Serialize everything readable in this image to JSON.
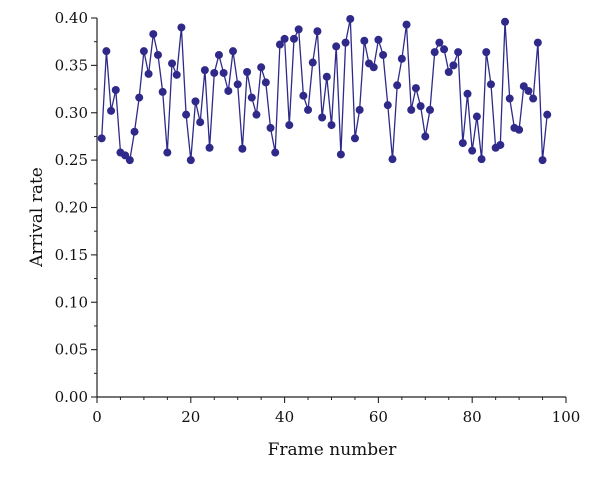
{
  "chart_data": {
    "type": "scatter",
    "title": "",
    "xlabel": "Frame number",
    "ylabel": "Arrival rate",
    "xlim": [
      0,
      100
    ],
    "ylim": [
      0.0,
      0.4
    ],
    "x_ticks": [
      "0",
      "20",
      "40",
      "60",
      "80",
      "100"
    ],
    "y_ticks": [
      "0.00",
      "0.05",
      "0.10",
      "0.15",
      "0.20",
      "0.25",
      "0.30",
      "0.35",
      "0.40"
    ],
    "grid": false,
    "legend": "none",
    "line_connected": true,
    "colors": {
      "series": "#2f2a8a",
      "axis": "#222222"
    },
    "series": [
      {
        "x": [
          1,
          2,
          3,
          4,
          5,
          6,
          7,
          8,
          9,
          10,
          11,
          12,
          13,
          14,
          15,
          16,
          17,
          18,
          19,
          20,
          21,
          22,
          23,
          24,
          25,
          26,
          27,
          28,
          29,
          30,
          31,
          32,
          33,
          34,
          35,
          36,
          37,
          38,
          39,
          40,
          41,
          42,
          43,
          44,
          45,
          46,
          47,
          48,
          49,
          50,
          51,
          52,
          53,
          54,
          55,
          56,
          57,
          58,
          59,
          60,
          61,
          62,
          63,
          64,
          65,
          66,
          67,
          68,
          69,
          70,
          71,
          72,
          73,
          74,
          75,
          76,
          77,
          78,
          79,
          80,
          81,
          82,
          83,
          84,
          85,
          86,
          87,
          88,
          89,
          90,
          91,
          92,
          93,
          94,
          95,
          96
        ],
        "values": [
          0.273,
          0.365,
          0.302,
          0.324,
          0.258,
          0.255,
          0.25,
          0.28,
          0.316,
          0.365,
          0.341,
          0.383,
          0.361,
          0.322,
          0.258,
          0.352,
          0.34,
          0.39,
          0.298,
          0.25,
          0.312,
          0.29,
          0.345,
          0.263,
          0.342,
          0.361,
          0.342,
          0.323,
          0.365,
          0.33,
          0.262,
          0.343,
          0.316,
          0.298,
          0.348,
          0.332,
          0.284,
          0.258,
          0.372,
          0.378,
          0.287,
          0.378,
          0.388,
          0.318,
          0.303,
          0.353,
          0.386,
          0.295,
          0.338,
          0.287,
          0.37,
          0.256,
          0.374,
          0.399,
          0.273,
          0.303,
          0.376,
          0.352,
          0.348,
          0.377,
          0.361,
          0.308,
          0.251,
          0.329,
          0.357,
          0.393,
          0.303,
          0.326,
          0.307,
          0.275,
          0.303,
          0.364,
          0.374,
          0.367,
          0.343,
          0.35,
          0.364,
          0.268,
          0.32,
          0.26,
          0.296,
          0.251,
          0.364,
          0.33,
          0.263,
          0.266,
          0.396,
          0.315,
          0.284,
          0.282,
          0.328,
          0.323,
          0.315,
          0.374,
          0.25,
          0.298
        ]
      }
    ]
  }
}
